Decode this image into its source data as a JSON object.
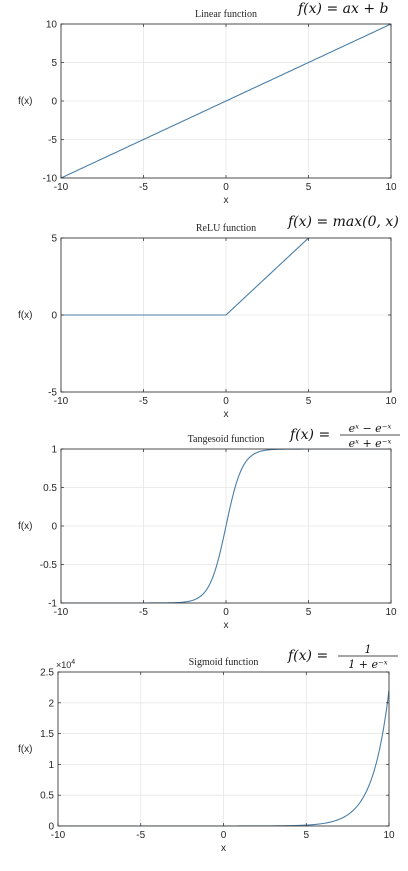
{
  "chart_data": [
    {
      "type": "line",
      "title": "Linear function",
      "formula": {
        "lhs": "f(x) = ",
        "rhs": "ax + b"
      },
      "xlabel": "x",
      "ylabel": "f(x)",
      "xlim": [
        -10,
        10
      ],
      "ylim": [
        -10,
        10
      ],
      "xticks": [
        -10,
        -5,
        0,
        5,
        10
      ],
      "yticks": [
        -10,
        -5,
        0,
        5,
        10
      ],
      "xtick_labels": [
        "-10",
        "-5",
        "0",
        "5",
        "10"
      ],
      "ytick_labels": [
        "-10",
        "-5",
        "0",
        "5",
        "10"
      ],
      "grid": true,
      "series": [
        {
          "function": "linear",
          "x": [
            -10,
            10
          ],
          "y": [
            -10,
            10
          ]
        }
      ]
    },
    {
      "type": "line",
      "title": "ReLU function",
      "formula": {
        "lhs": "f(x) = ",
        "rhs": "max(0, x)"
      },
      "xlabel": "x",
      "ylabel": "f(x)",
      "xlim": [
        -10,
        10
      ],
      "ylim": [
        -5,
        5
      ],
      "xticks": [
        -10,
        -5,
        0,
        5,
        10
      ],
      "yticks": [
        -5,
        0,
        5
      ],
      "xtick_labels": [
        "-10",
        "-5",
        "0",
        "5",
        "10"
      ],
      "ytick_labels": [
        "-5",
        "0",
        "5"
      ],
      "grid": true,
      "series": [
        {
          "function": "relu",
          "x": [
            -10,
            0,
            5
          ],
          "y": [
            0,
            0,
            5
          ]
        }
      ]
    },
    {
      "type": "line",
      "title": "Tangesoid function",
      "formula": {
        "lhs": "f(x) = ",
        "num": "eˣ − e⁻ˣ",
        "den": "eˣ + e⁻ˣ"
      },
      "xlabel": "x",
      "ylabel": "f(x)",
      "xlim": [
        -10,
        10
      ],
      "ylim": [
        -1,
        1
      ],
      "xticks": [
        -10,
        -5,
        0,
        5,
        10
      ],
      "yticks": [
        -1,
        -0.5,
        0,
        0.5,
        1
      ],
      "xtick_labels": [
        "-10",
        "-5",
        "0",
        "5",
        "10"
      ],
      "ytick_labels": [
        "-1",
        "-0.5",
        "0",
        "0.5",
        "1"
      ],
      "grid": true,
      "series": [
        {
          "function": "tanh",
          "x": [
            -10,
            -5,
            -2,
            -1,
            0,
            1,
            2,
            5,
            10
          ],
          "y": [
            -1,
            -0.9999,
            -0.964,
            -0.762,
            0,
            0.762,
            0.964,
            0.9999,
            1
          ]
        }
      ]
    },
    {
      "type": "line",
      "title": "Sigmoid function",
      "formula": {
        "lhs": "f(x) = ",
        "num": "1",
        "den": "1 + e⁻ˣ"
      },
      "xlabel": "x",
      "ylabel": "f(x)",
      "xlim": [
        -10,
        10
      ],
      "ylim": [
        0,
        25000
      ],
      "y_exponent_label": "×10",
      "y_exponent_power": "4",
      "xticks": [
        -10,
        -5,
        0,
        5,
        10
      ],
      "yticks": [
        0,
        5000,
        10000,
        15000,
        20000,
        25000
      ],
      "xtick_labels": [
        "-10",
        "-5",
        "0",
        "5",
        "10"
      ],
      "ytick_labels": [
        "0",
        "0.5",
        "1",
        "1.5",
        "2",
        "2.5"
      ],
      "grid": true,
      "series": [
        {
          "function": "exp",
          "x": [
            -10,
            0,
            5,
            8,
            10
          ],
          "y": [
            0,
            1,
            148,
            2981,
            22026
          ]
        }
      ]
    }
  ]
}
